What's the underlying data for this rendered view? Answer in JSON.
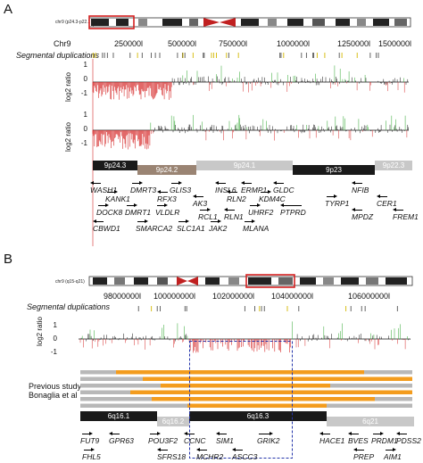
{
  "panel_a": {
    "letter": "A",
    "ideogram_label": "chr9 (p24.3-p22.2)",
    "ideogram_bands": [
      "p24.3",
      "p23",
      "p21.3",
      "p21.1",
      "p13.3",
      "q21.2",
      "q22.1",
      "q31.2",
      "q33.1",
      "q34.12"
    ],
    "chr_label": "Chr9",
    "positions": [
      "250000l",
      "500000l",
      "750000l",
      "1000000l",
      "1250000l",
      "1500000l"
    ],
    "segdup_label": "Segmental duplications",
    "log2_label": "log2 ratio",
    "yticks_top": [
      "1",
      "0",
      "-1"
    ],
    "yticks_bottom": [
      "1",
      "0",
      "-1"
    ],
    "bands": [
      "9p24.3",
      "9p24.2",
      "9p24.1",
      "9p23",
      "9p22.3"
    ],
    "genes": {
      "WASH1": "WASH1",
      "KANK1": "KANK1",
      "DOCK8": "DOCK8",
      "CBWD1": "CBWD1",
      "DMRT3": "DMRT3",
      "DMRT1": "DMRT1",
      "RFX3": "RFX3",
      "VLDLR": "VLDLR",
      "SMARCA2": "SMARCA2",
      "GLIS3": "GLIS3",
      "AK3": "AK3",
      "RCL1": "RCL1",
      "SLC1A1": "SLC1A1",
      "INSL6": "INSL6",
      "ERMP1": "ERMP1",
      "RLN2": "RLN2",
      "RLN1": "RLN1",
      "JAK2": "JAK2",
      "GLDC": "GLDC",
      "KDM4C": "KDM4C",
      "UHRF2": "UHRF2",
      "PTPRD": "PTPRD",
      "MLANA": "MLANA",
      "TYRP1": "TYRP1",
      "MPDZ": "MPDZ",
      "NFIB": "NFIB",
      "CER1": "CER1",
      "FREM1": "FREM1"
    }
  },
  "panel_b": {
    "letter": "B",
    "ideogram_label": "chr9 (q15-q21)",
    "ideogram_bands": [
      "p22.3",
      "p13.3",
      "p12",
      "q12",
      "q13",
      "q15",
      "q16.1",
      "q16.3",
      "q21",
      "q22.31",
      "q24.2"
    ],
    "positions": [
      "98000000l",
      "100000000l",
      "102000000l",
      "104000000l",
      "106000000l"
    ],
    "segdup_label": "Segmental duplications",
    "log2_label": "log2 ratio",
    "yticks": [
      "1",
      "0",
      "-1"
    ],
    "previous_study_label_1": "Previous study",
    "previous_study_label_2": "Bonaglia et al",
    "bands": [
      "6q16.1",
      "6q16.2",
      "6q16.3",
      "6q21"
    ],
    "genes": {
      "FUT9": "FUT9",
      "FHL5": "FHL5",
      "GPR63": "GPR63",
      "POU3F2": "POU3F2",
      "SFRS18": "SFRS18",
      "CCNC": "CCNC",
      "MCHR2": "MCHR2",
      "SIM1": "SIM1",
      "ASCC3": "ASCC3",
      "GRIK2": "GRIK2",
      "HACE1": "HACE1",
      "BVES": "BVES",
      "PREP": "PREP",
      "PRDM1": "PRDM1",
      "AIM1": "AIM1",
      "PDSS2": "PDSS2"
    }
  },
  "colors": {
    "gain": "#4db34d",
    "loss": "#d62828",
    "neutral": "#111111",
    "orange": "#f39c1e",
    "gray_bar": "#b8b8b8",
    "box": "#2233aa",
    "highlight": "#d42020"
  }
}
